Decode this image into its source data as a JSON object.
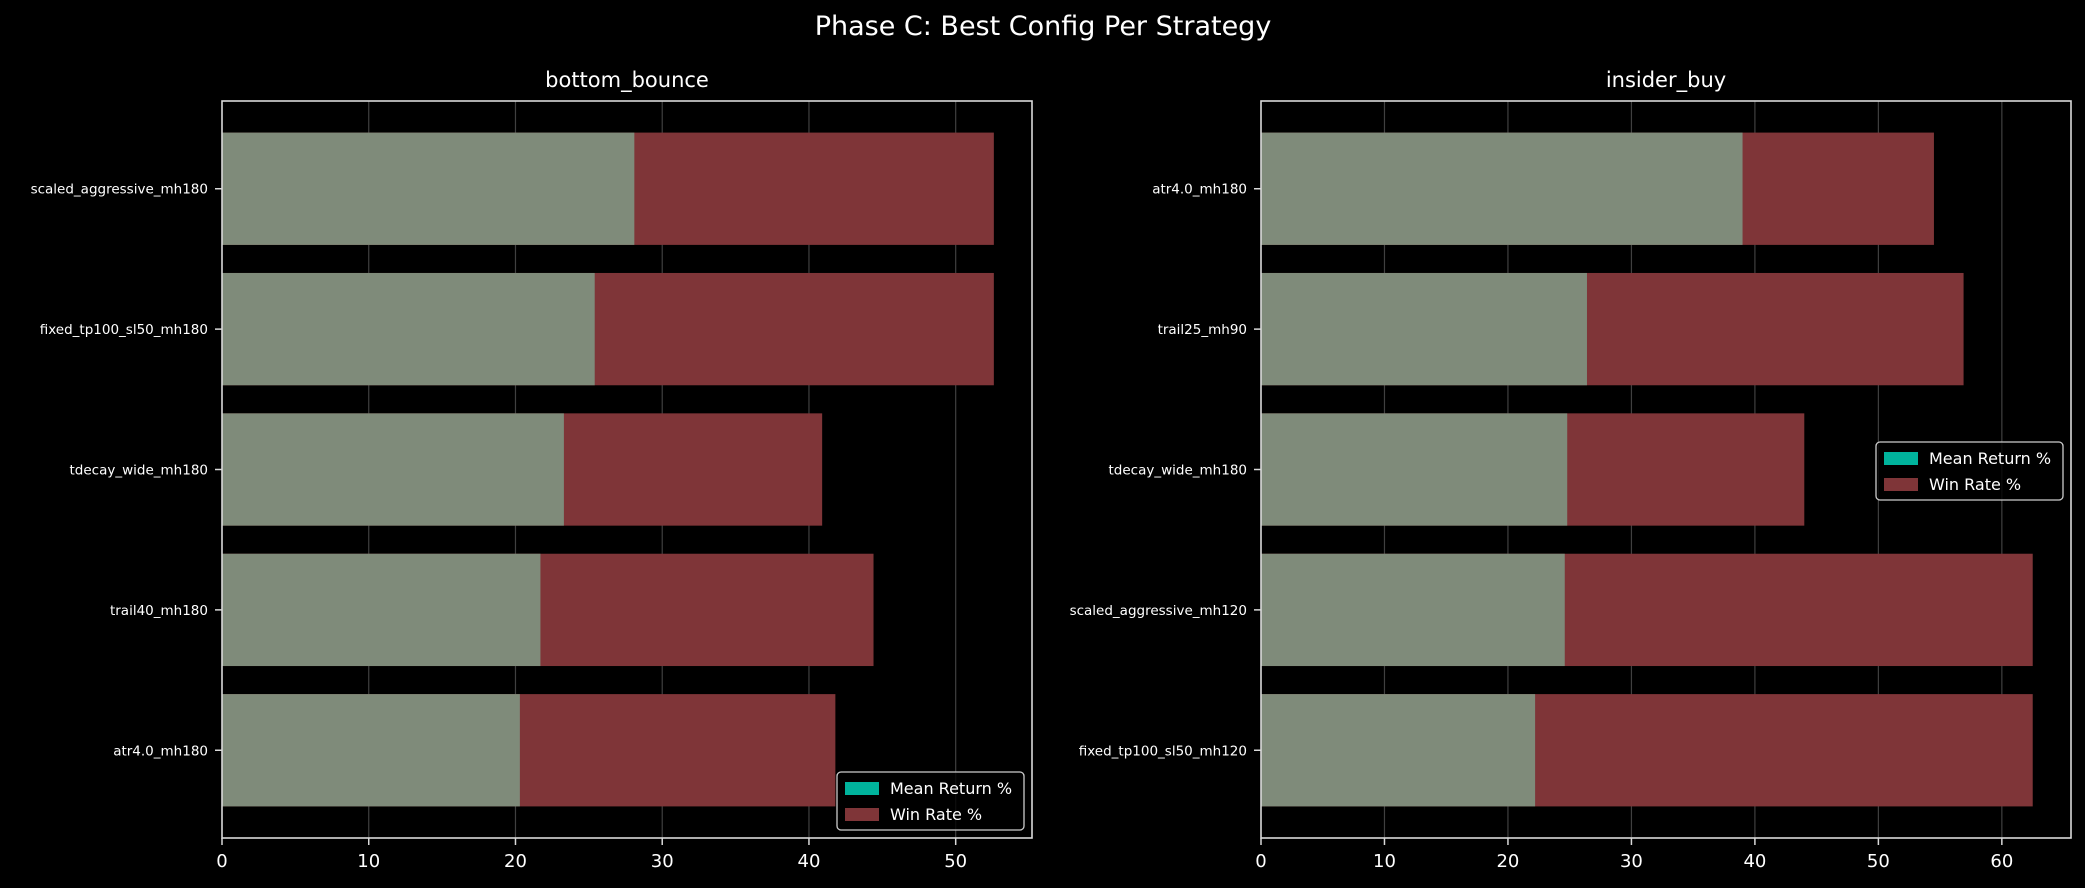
{
  "figure_title": "Phase C: Best Config Per Strategy",
  "colors": {
    "background": "#000000",
    "mean_return": "#00b39c",
    "mean_return_overlay": "#7f8b7a",
    "win_rate": "#7f3538",
    "axis": "#d9d9d9",
    "grid": "#404040",
    "text": "#ffffff"
  },
  "chart_data": [
    {
      "type": "bar",
      "orientation": "horizontal",
      "title": "bottom_bounce",
      "categories": [
        "scaled_aggressive_mh180",
        "fixed_tp100_sl50_mh180",
        "tdecay_wide_mh180",
        "trail40_mh180",
        "atr4.0_mh180"
      ],
      "series": [
        {
          "name": "Mean Return %",
          "values": [
            28.1,
            25.4,
            23.3,
            21.7,
            20.3
          ]
        },
        {
          "name": "Win Rate %",
          "values": [
            52.6,
            52.6,
            40.9,
            44.4,
            41.8
          ]
        }
      ],
      "xlim": [
        0,
        55.2
      ],
      "xticks": [
        0,
        10,
        20,
        30,
        40,
        50
      ],
      "grid": "x",
      "legend_position": "lower-right"
    },
    {
      "type": "bar",
      "orientation": "horizontal",
      "title": "insider_buy",
      "categories": [
        "atr4.0_mh180",
        "trail25_mh90",
        "tdecay_wide_mh180",
        "scaled_aggressive_mh120",
        "fixed_tp100_sl50_mh120"
      ],
      "series": [
        {
          "name": "Mean Return %",
          "values": [
            39.0,
            26.4,
            24.8,
            24.6,
            22.2
          ]
        },
        {
          "name": "Win Rate %",
          "values": [
            54.5,
            56.9,
            44.0,
            62.5,
            62.5
          ]
        }
      ],
      "xlim": [
        0,
        65.6
      ],
      "xticks": [
        0,
        10,
        20,
        30,
        40,
        50,
        60
      ],
      "grid": "x",
      "legend_position": "center-right"
    }
  ]
}
